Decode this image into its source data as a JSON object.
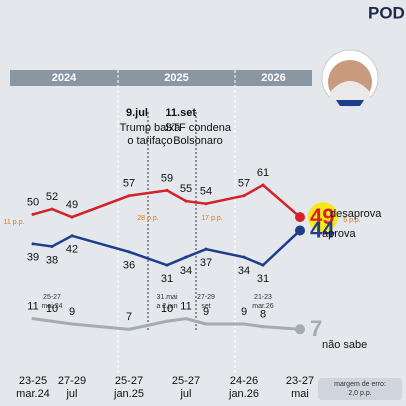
{
  "brand": "PODE",
  "chart_data": {
    "type": "line",
    "periods": [
      "2024",
      "2025",
      "2026"
    ],
    "categories": [
      "23-25 mar.24",
      "25-27 mai.24",
      "27-29 jul",
      "25-27 jan.25",
      "31.mai a 2.jun",
      "25-27 jul",
      "27-29 set",
      "24-26 jan.26",
      "21-23 mar.26",
      "23-27 mai"
    ],
    "axis_categories": [
      true,
      false,
      true,
      true,
      false,
      true,
      false,
      true,
      false,
      true
    ],
    "series": [
      {
        "name": "desaprova",
        "color": "#d3222a",
        "values": [
          50,
          52,
          49,
          57,
          59,
          55,
          54,
          57,
          61,
          49
        ]
      },
      {
        "name": "aprova",
        "color": "#1e3d8c",
        "values": [
          39,
          38,
          42,
          36,
          31,
          34,
          37,
          34,
          31,
          44
        ]
      },
      {
        "name": "não sabe",
        "color": "#a3abb3",
        "values": [
          11,
          10,
          9,
          7,
          10,
          11,
          9,
          9,
          8,
          7
        ]
      }
    ],
    "ylim": [
      0,
      70
    ],
    "events": [
      {
        "date": "9.jul",
        "text": "Trump baixa o tarifaço"
      },
      {
        "date": "11.set",
        "text": "STF condena Bolsonaro"
      }
    ],
    "gaps": [
      "11 p.p.",
      "28 p.p.",
      "17 p.p.",
      "5 p.p."
    ],
    "note": "margem de erro: 2,0 p.p."
  }
}
